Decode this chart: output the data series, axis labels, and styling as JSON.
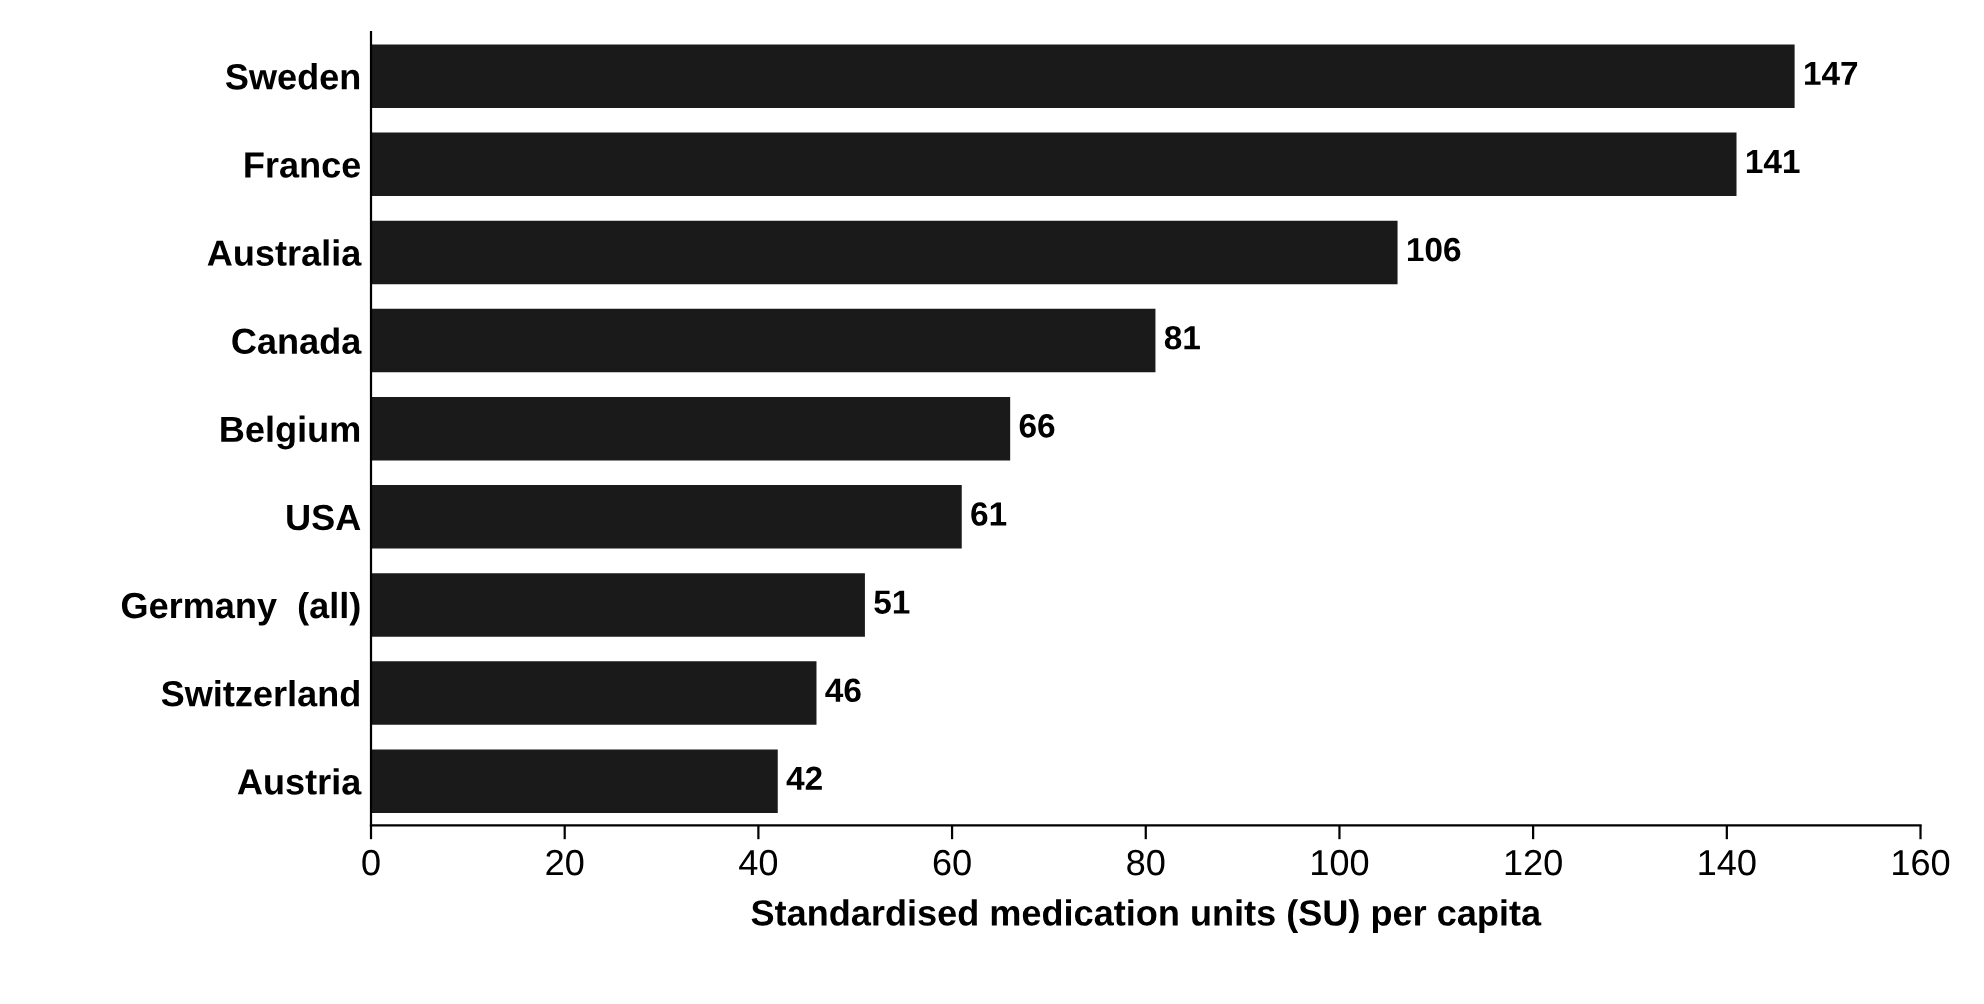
{
  "chart_data": {
    "type": "bar",
    "orientation": "horizontal",
    "xlabel": "Standardised medication units (SU) per capita",
    "categories": [
      "Sweden",
      "France",
      "Australia",
      "Canada",
      "Belgium",
      "USA",
      "Germany  (all)",
      "Switzerland",
      "Austria"
    ],
    "values": [
      147,
      141,
      106,
      81,
      66,
      61,
      51,
      46,
      42
    ],
    "color": "#1a1a1a",
    "data_labels": true,
    "xlim": [
      0,
      160
    ],
    "xticks": [
      0,
      20,
      40,
      60,
      80,
      100,
      120,
      140,
      160
    ],
    "grid": false,
    "legend": false
  }
}
